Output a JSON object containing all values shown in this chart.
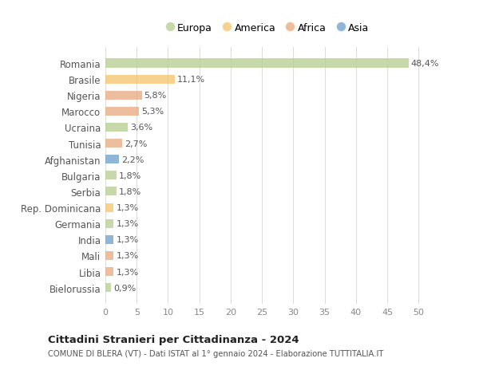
{
  "countries": [
    "Romania",
    "Brasile",
    "Nigeria",
    "Marocco",
    "Ucraina",
    "Tunisia",
    "Afghanistan",
    "Bulgaria",
    "Serbia",
    "Rep. Dominicana",
    "Germania",
    "India",
    "Mali",
    "Libia",
    "Bielorussia"
  ],
  "values": [
    48.4,
    11.1,
    5.8,
    5.3,
    3.6,
    2.7,
    2.2,
    1.8,
    1.8,
    1.3,
    1.3,
    1.3,
    1.3,
    1.3,
    0.9
  ],
  "labels": [
    "48,4%",
    "11,1%",
    "5,8%",
    "5,3%",
    "3,6%",
    "2,7%",
    "2,2%",
    "1,8%",
    "1,8%",
    "1,3%",
    "1,3%",
    "1,3%",
    "1,3%",
    "1,3%",
    "0,9%"
  ],
  "continents": [
    "Europa",
    "America",
    "Africa",
    "Africa",
    "Europa",
    "Africa",
    "Asia",
    "Europa",
    "Europa",
    "America",
    "Europa",
    "Asia",
    "Africa",
    "Africa",
    "Europa"
  ],
  "colors": {
    "Europa": "#b5cc8e",
    "America": "#f5c469",
    "Africa": "#e8a87c",
    "Asia": "#6b9ec7"
  },
  "legend_order": [
    "Europa",
    "America",
    "Africa",
    "Asia"
  ],
  "title": "Cittadini Stranieri per Cittadinanza - 2024",
  "subtitle": "COMUNE DI BLERA (VT) - Dati ISTAT al 1° gennaio 2024 - Elaborazione TUTTITALIA.IT",
  "xlim": [
    0,
    52
  ],
  "xticks": [
    0,
    5,
    10,
    15,
    20,
    25,
    30,
    35,
    40,
    45,
    50
  ],
  "background_color": "#ffffff",
  "grid_color": "#dddddd",
  "bar_alpha": 0.75,
  "bar_height": 0.55
}
